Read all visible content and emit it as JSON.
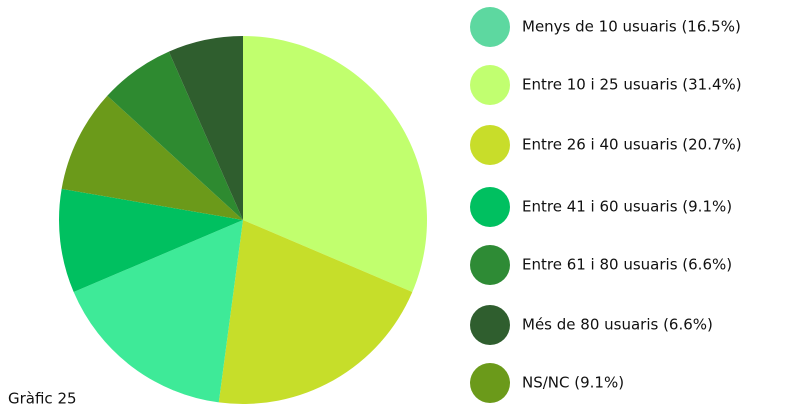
{
  "chart_data": {
    "type": "pie",
    "categories": [
      "Menys de 10 usuaris (16.5%)",
      "Entre 10 i 25 usuaris (31.4%)",
      "Entre 26 i 40 usuaris (20.7%)",
      "Entre 41 i 60 usuaris (9.1%)",
      "Entre 61 i 80 usuaris (6.6%)",
      "Més de 80 usuaris (6.6%)",
      "NS/NC (9.1%)"
    ],
    "values": [
      16.5,
      31.4,
      20.7,
      9.1,
      6.6,
      6.6,
      9.1
    ],
    "colors": [
      "#3eea98",
      "#c1ff6e",
      "#c6de2a",
      "#00c060",
      "#2e8a30",
      "#2f5e2e",
      "#6b9a1a"
    ],
    "legend_colors": [
      "#5dd8a0",
      "#c1ff70",
      "#c8dd2a",
      "#00c060",
      "#2e8b35",
      "#2f5e2e",
      "#6b9a1a"
    ],
    "caption": "Gràfic 25"
  }
}
